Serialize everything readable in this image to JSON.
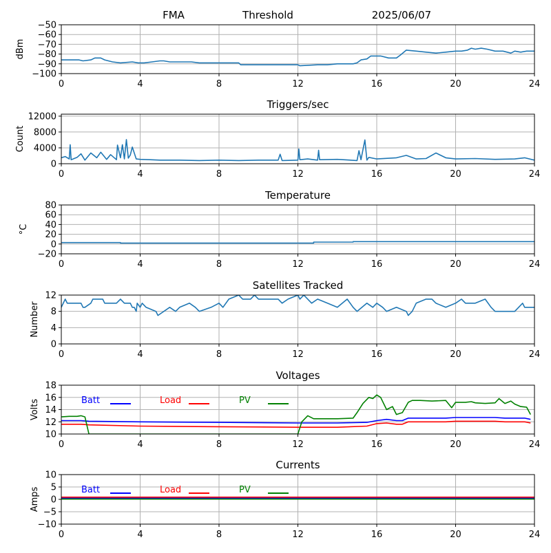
{
  "header": {
    "station": "FMA",
    "label": "Threshold",
    "date": "2025/06/07"
  },
  "colors": {
    "series": "#1f77b4",
    "grid": "#b0b0b0",
    "batt": "#0000ff",
    "load": "#ff0000",
    "pv": "#008000"
  },
  "chart_data": [
    {
      "id": "threshold",
      "type": "line",
      "title": "",
      "xlabel": "",
      "ylabel": "dBm",
      "xlim": [
        0,
        24
      ],
      "ylim": [
        -100,
        -50
      ],
      "xticks": [
        0,
        4,
        8,
        12,
        16,
        20,
        24
      ],
      "yticks": [
        -100,
        -90,
        -80,
        -70,
        -60,
        -50
      ],
      "grid": true,
      "series": [
        {
          "color": "#1f77b4",
          "x": [
            0,
            0.9,
            1.1,
            1.5,
            1.7,
            2.0,
            2.2,
            2.6,
            3.0,
            3.6,
            3.9,
            4.2,
            4.6,
            5.0,
            5.2,
            5.5,
            6.0,
            6.3,
            6.6,
            7.0,
            8.0,
            9.0,
            9.1,
            10.0,
            11.0,
            12.0,
            12.1,
            13.0,
            13.5,
            14.0,
            14.8,
            15.0,
            15.2,
            15.5,
            15.7,
            16.0,
            16.2,
            16.6,
            17.0,
            17.2,
            17.5,
            18.0,
            18.5,
            19.0,
            19.5,
            20.0,
            20.3,
            20.6,
            20.8,
            21.0,
            21.3,
            21.6,
            22.0,
            22.4,
            22.8,
            23.0,
            23.3,
            23.6,
            24.0
          ],
          "y": [
            -86,
            -86,
            -87,
            -86,
            -84,
            -84,
            -86,
            -88,
            -89,
            -88,
            -89,
            -89,
            -88,
            -87,
            -87,
            -88,
            -88,
            -88,
            -88,
            -89,
            -89,
            -89,
            -91,
            -91,
            -91,
            -91,
            -92,
            -91,
            -91,
            -90,
            -90,
            -89,
            -86,
            -85,
            -82,
            -82,
            -82,
            -84,
            -84,
            -81,
            -76,
            -77,
            -78,
            -79,
            -78,
            -77,
            -77,
            -76,
            -74,
            -75,
            -74,
            -75,
            -77,
            -77,
            -79,
            -77,
            -78,
            -77,
            -77
          ]
        }
      ]
    },
    {
      "id": "triggers",
      "type": "line",
      "title": "Triggers/sec",
      "xlabel": "",
      "ylabel": "Count",
      "xlim": [
        0,
        24
      ],
      "ylim": [
        0,
        12500
      ],
      "xticks": [
        0,
        4,
        8,
        12,
        16,
        20,
        24
      ],
      "yticks": [
        0,
        4000,
        8000,
        12000
      ],
      "grid": true,
      "series": [
        {
          "color": "#1f77b4",
          "x": [
            0,
            0.2,
            0.4,
            0.45,
            0.5,
            0.8,
            1.0,
            1.2,
            1.5,
            1.8,
            2.0,
            2.3,
            2.5,
            2.8,
            2.85,
            3.0,
            3.1,
            3.2,
            3.3,
            3.4,
            3.5,
            3.6,
            3.8,
            4.0,
            4.5,
            5.0,
            6.0,
            7.0,
            8.0,
            9.0,
            10.0,
            11.0,
            11.1,
            11.2,
            12.0,
            12.05,
            12.1,
            12.5,
            13.0,
            13.05,
            13.1,
            14.0,
            15.0,
            15.1,
            15.2,
            15.4,
            15.5,
            15.6,
            16.0,
            17.0,
            17.5,
            18.0,
            18.5,
            19.0,
            19.5,
            20.0,
            21.0,
            22.0,
            23.0,
            23.5,
            24.0
          ],
          "y": [
            1500,
            1800,
            1200,
            4800,
            1000,
            1600,
            2500,
            900,
            2700,
            1500,
            2900,
            1100,
            2300,
            1000,
            4700,
            1500,
            4800,
            1200,
            6100,
            1400,
            2200,
            4200,
            1200,
            1100,
            1000,
            900,
            900,
            800,
            900,
            800,
            900,
            900,
            2400,
            800,
            900,
            3700,
            1000,
            1200,
            900,
            3400,
            1000,
            1100,
            800,
            3300,
            1000,
            6000,
            900,
            1600,
            1200,
            1500,
            2100,
            1200,
            1300,
            2700,
            1500,
            1200,
            1300,
            1100,
            1200,
            1500,
            900
          ]
        }
      ]
    },
    {
      "id": "temperature",
      "type": "line",
      "title": "Temperature",
      "xlabel": "",
      "ylabel": "°C",
      "xlim": [
        0,
        24
      ],
      "ylim": [
        -20,
        80
      ],
      "xticks": [
        0,
        4,
        8,
        12,
        16,
        20,
        24
      ],
      "yticks": [
        -20,
        0,
        20,
        40,
        60,
        80
      ],
      "grid": true,
      "series": [
        {
          "color": "#1f77b4",
          "x": [
            0,
            3.0,
            3.0,
            12.8,
            12.8,
            14.8,
            14.8,
            24
          ],
          "y": [
            3,
            3,
            2,
            2,
            4,
            4,
            5,
            5
          ]
        }
      ]
    },
    {
      "id": "satellites",
      "type": "line",
      "title": "Satellites Tracked",
      "xlabel": "",
      "ylabel": "Number",
      "xlim": [
        0,
        24
      ],
      "ylim": [
        0,
        12
      ],
      "xticks": [
        0,
        4,
        8,
        12,
        16,
        20,
        24
      ],
      "yticks": [
        0,
        4,
        8,
        12
      ],
      "grid": true,
      "series": [
        {
          "color": "#1f77b4",
          "x": [
            0,
            0.2,
            0.3,
            0.5,
            1.0,
            1.1,
            1.2,
            1.5,
            1.6,
            2.1,
            2.2,
            2.8,
            3.0,
            3.2,
            3.5,
            3.6,
            3.7,
            3.8,
            3.85,
            4.0,
            4.1,
            4.3,
            4.8,
            4.9,
            5.5,
            5.8,
            6.0,
            6.5,
            6.8,
            7.0,
            7.6,
            8.0,
            8.2,
            8.5,
            9.0,
            9.2,
            9.6,
            9.8,
            10.0,
            10.2,
            10.5,
            11.0,
            11.2,
            11.5,
            12.0,
            12.1,
            12.3,
            12.5,
            12.7,
            13.0,
            13.5,
            14.0,
            14.5,
            14.8,
            15.0,
            15.5,
            15.8,
            16.0,
            16.3,
            16.5,
            17.0,
            17.5,
            17.6,
            17.8,
            18.0,
            18.5,
            18.8,
            19.0,
            19.5,
            20.0,
            20.3,
            20.5,
            21.0,
            21.5,
            21.8,
            22.0,
            22.3,
            23.0,
            23.4,
            23.5,
            24.0
          ],
          "y": [
            9,
            11,
            10,
            10,
            10,
            9,
            9,
            10,
            11,
            11,
            10,
            10,
            11,
            10,
            10,
            9,
            9,
            8,
            10,
            9,
            10,
            9,
            8,
            7,
            9,
            8,
            9,
            10,
            9,
            8,
            9,
            10,
            9,
            11,
            12,
            11,
            11,
            12,
            11,
            11,
            11,
            11,
            10,
            11,
            12,
            11,
            12,
            11,
            10,
            11,
            10,
            9,
            11,
            9,
            8,
            10,
            9,
            10,
            9,
            8,
            9,
            8,
            7,
            8,
            10,
            11,
            11,
            10,
            9,
            10,
            11,
            10,
            10,
            11,
            9,
            8,
            8,
            8,
            10,
            9,
            9
          ]
        }
      ]
    },
    {
      "id": "voltages",
      "type": "line",
      "title": "Voltages",
      "xlabel": "",
      "ylabel": "Volts",
      "xlim": [
        0,
        24
      ],
      "ylim": [
        10,
        18
      ],
      "xticks": [
        0,
        4,
        8,
        12,
        16,
        20,
        24
      ],
      "yticks": [
        10,
        12,
        14,
        16,
        18
      ],
      "grid": true,
      "series": [
        {
          "name": "Batt",
          "color": "#0000ff",
          "x": [
            0,
            1.0,
            1.4,
            4,
            8,
            12,
            14,
            15.5,
            16,
            16.5,
            17,
            17.3,
            17.6,
            18,
            19.5,
            20,
            22,
            22.5,
            23.5,
            23.8
          ],
          "y": [
            12.2,
            12.2,
            12.1,
            12.0,
            11.9,
            11.8,
            11.8,
            11.9,
            12.2,
            12.4,
            12.2,
            12.2,
            12.6,
            12.6,
            12.6,
            12.7,
            12.7,
            12.6,
            12.6,
            12.4
          ]
        },
        {
          "name": "Load",
          "color": "#ff0000",
          "x": [
            0,
            1.0,
            1.4,
            4,
            8,
            12,
            14,
            15.5,
            16,
            16.5,
            17,
            17.3,
            17.6,
            18,
            19.5,
            20,
            22,
            22.5,
            23.5,
            23.8
          ],
          "y": [
            11.6,
            11.6,
            11.5,
            11.3,
            11.2,
            11.1,
            11.1,
            11.3,
            11.7,
            11.8,
            11.6,
            11.6,
            12.0,
            12.0,
            12.0,
            12.1,
            12.1,
            12.0,
            12.0,
            11.8
          ]
        },
        {
          "name": "PV",
          "color": "#008000",
          "x": [
            0,
            0.4,
            0.8,
            1.0,
            1.2,
            1.4,
            12.0,
            12.2,
            12.5,
            12.8,
            13.2,
            14,
            14.8,
            15.0,
            15.3,
            15.6,
            15.8,
            16.0,
            16.2,
            16.5,
            16.8,
            17.0,
            17.3,
            17.6,
            17.8,
            18.2,
            18.8,
            19.5,
            19.8,
            20.0,
            20.5,
            20.8,
            21.0,
            21.5,
            22.0,
            22.2,
            22.5,
            22.8,
            23.0,
            23.3,
            23.6,
            23.8
          ],
          "y": [
            12.8,
            12.9,
            12.9,
            13.0,
            12.8,
            10.0,
            10.0,
            12.0,
            13.0,
            12.5,
            12.5,
            12.5,
            12.6,
            13.5,
            15.0,
            16.0,
            15.8,
            16.4,
            16.0,
            14.0,
            14.5,
            13.2,
            13.5,
            15.2,
            15.5,
            15.5,
            15.4,
            15.5,
            14.3,
            15.2,
            15.2,
            15.3,
            15.1,
            15.0,
            15.1,
            15.8,
            15.0,
            15.4,
            14.9,
            14.5,
            14.4,
            13.2
          ]
        }
      ],
      "legend_placement": "top-left inline"
    },
    {
      "id": "currents",
      "type": "line",
      "title": "Currents",
      "xlabel": "",
      "ylabel": "Amps",
      "xlim": [
        0,
        24
      ],
      "ylim": [
        -10,
        10
      ],
      "xticks": [
        0,
        4,
        8,
        12,
        16,
        20,
        24
      ],
      "yticks": [
        -10,
        -5,
        0,
        5,
        10
      ],
      "grid": true,
      "series": [
        {
          "name": "Batt",
          "color": "#0000ff",
          "x": [
            0,
            24
          ],
          "y": [
            0.5,
            0.5
          ]
        },
        {
          "name": "Load",
          "color": "#ff0000",
          "x": [
            0,
            24
          ],
          "y": [
            0.9,
            0.9
          ]
        },
        {
          "name": "PV",
          "color": "#008000",
          "x": [
            0,
            24
          ],
          "y": [
            0.1,
            0.1
          ]
        }
      ],
      "legend_placement": "top-left inline"
    }
  ]
}
